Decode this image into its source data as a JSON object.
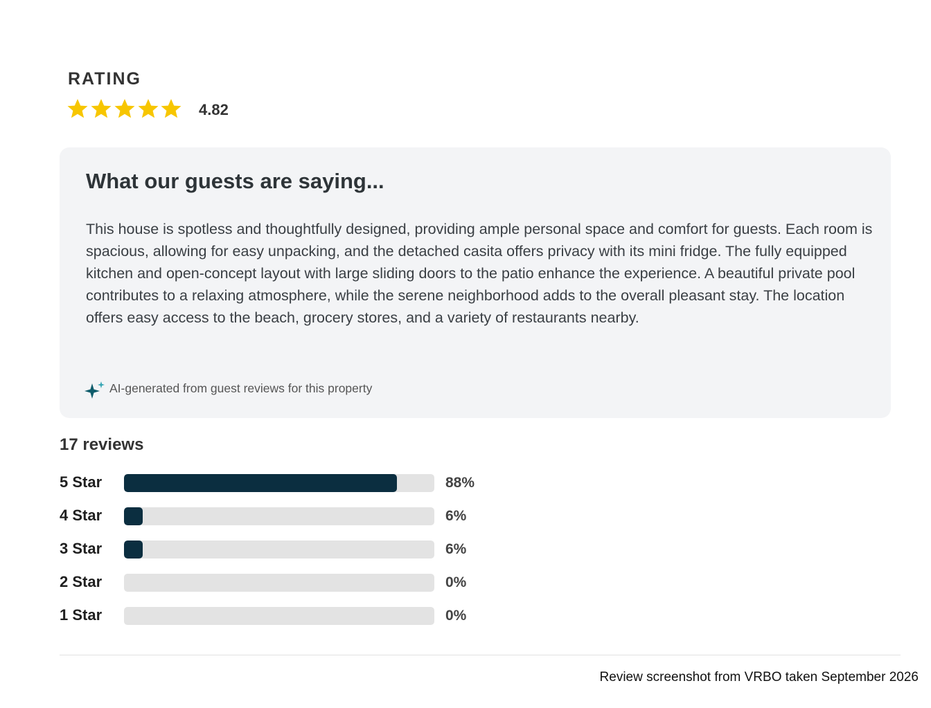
{
  "rating": {
    "title": "RATING",
    "value": "4.82"
  },
  "summary": {
    "title": "What our guests are saying...",
    "text": "This house is spotless and thoughtfully designed, providing ample personal space and comfort for guests. Each room is spacious, allowing for easy unpacking, and the detached casita offers privacy with its mini fridge. The fully equipped kitchen and open-concept layout with large sliding doors to the patio enhance the experience. A beautiful private pool contributes to a relaxing atmosphere, while the serene neighborhood adds to the overall pleasant stay. The location offers easy access to the beach, grocery stores, and a variety of restaurants nearby.",
    "note": "AI-generated from guest reviews for this property"
  },
  "reviews": {
    "count_label": "17 reviews",
    "labels": [
      "5 Star",
      "4 Star",
      "3 Star",
      "2 Star",
      "1 Star"
    ],
    "values": [
      88,
      6,
      6,
      0,
      0
    ],
    "value_labels": [
      "88%",
      "6%",
      "6%",
      "0%",
      "0%"
    ],
    "xlim": [
      0,
      100
    ]
  },
  "caption": "Review screenshot from VRBO taken September 2026"
}
